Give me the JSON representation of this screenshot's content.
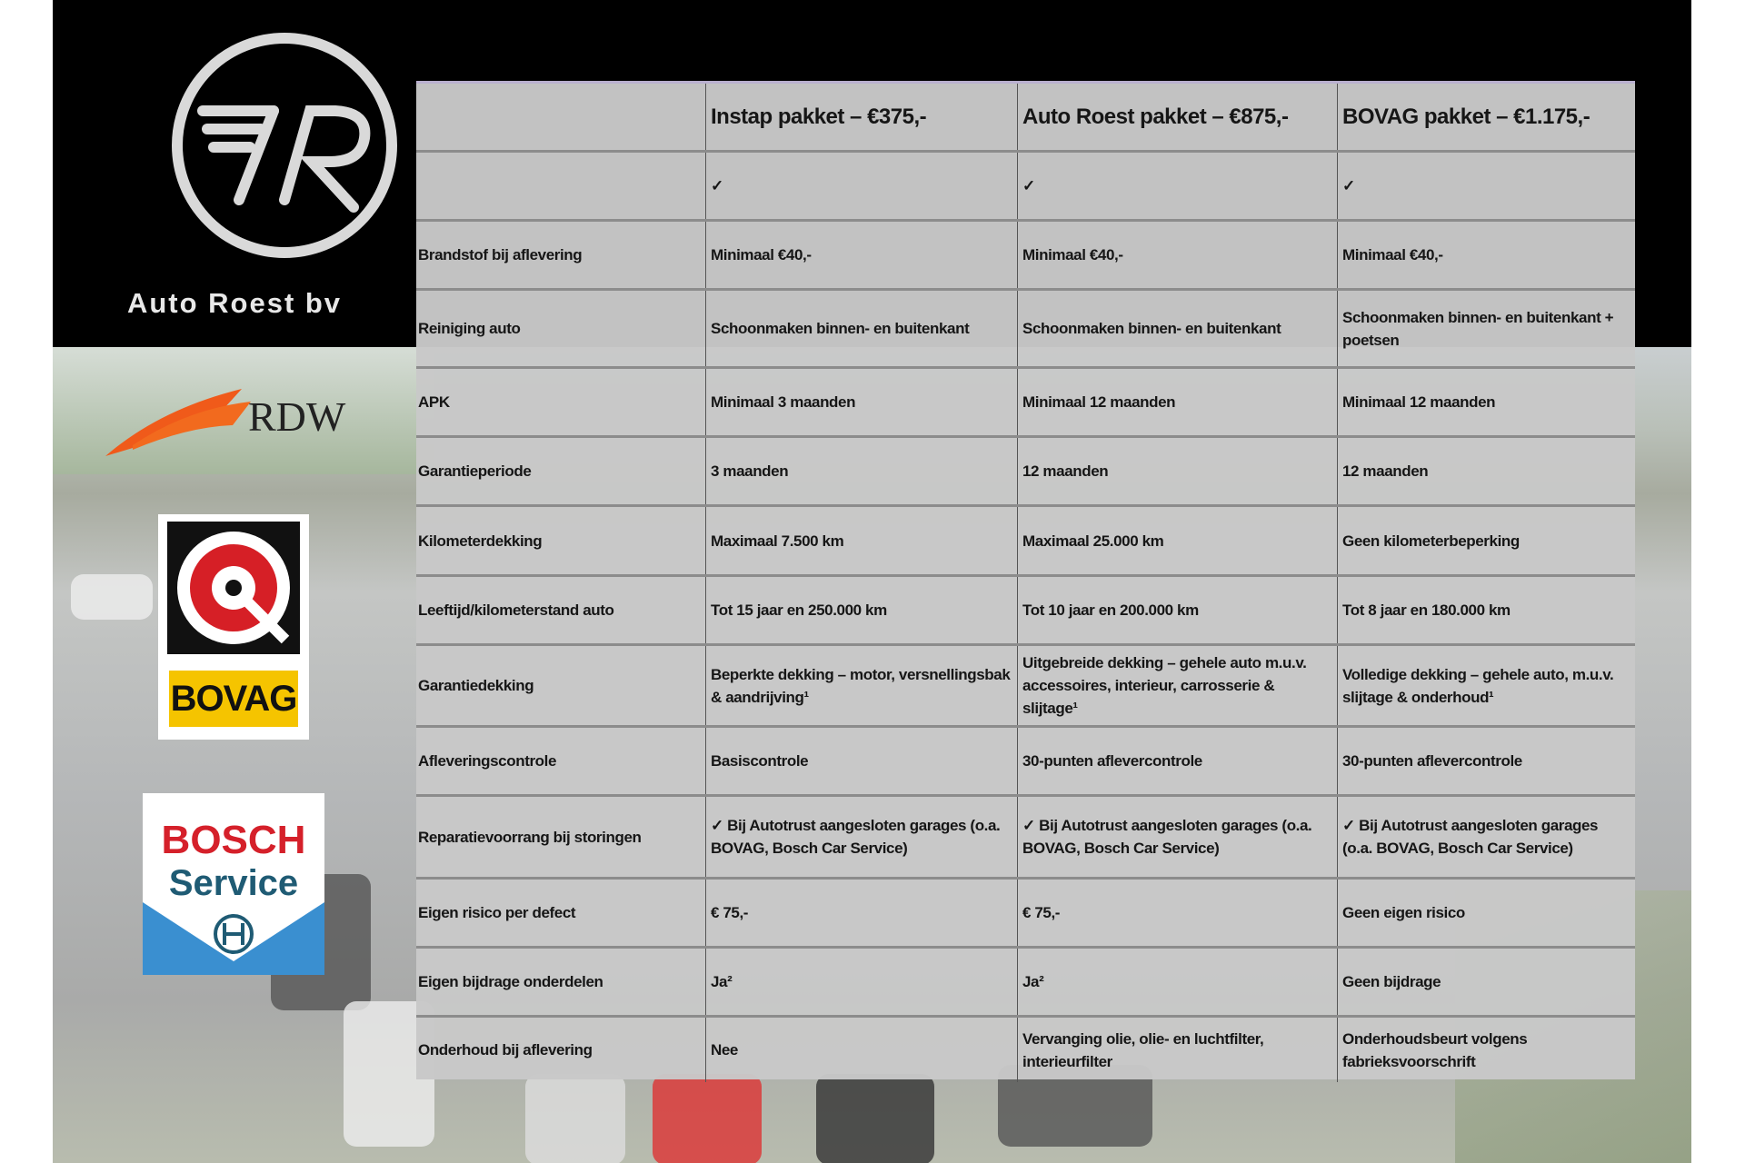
{
  "brand": {
    "name": "Auto Roest bv"
  },
  "logos": {
    "rdw": "RDW",
    "bovag": "BOVAG",
    "bosch_line1": "BOSCH",
    "bosch_line2": "Service"
  },
  "colors": {
    "table_bg": "#c8c8c8",
    "rdw_orange": "#f05a1a",
    "bovag_yellow": "#f5c400",
    "bovag_red": "#d61f26",
    "bosch_red": "#d5202a",
    "bosch_blue": "#3a8fd0"
  },
  "table": {
    "headers": [
      "",
      "Instap pakket – €375,-",
      "Auto Roest pakket – €875,-",
      "BOVAG pakket – €1.175,-"
    ],
    "rows": [
      {
        "label": "",
        "values": [
          "✓",
          "✓",
          "✓"
        ]
      },
      {
        "label": "Brandstof bij aflevering",
        "values": [
          "Minimaal €40,-",
          "Minimaal €40,-",
          "Minimaal €40,-"
        ]
      },
      {
        "label": "Reiniging auto",
        "values": [
          "Schoonmaken binnen- en buitenkant",
          "Schoonmaken binnen- en buitenkant",
          "Schoonmaken binnen- en buitenkant + poetsen"
        ]
      },
      {
        "label": "APK",
        "values": [
          "Minimaal 3 maanden",
          "Minimaal 12 maanden",
          "Minimaal 12 maanden"
        ]
      },
      {
        "label": "Garantieperiode",
        "values": [
          "3 maanden",
          "12 maanden",
          "12 maanden"
        ]
      },
      {
        "label": "Kilometerdekking",
        "values": [
          "Maximaal 7.500 km",
          "Maximaal 25.000 km",
          "Geen kilometerbeperking"
        ]
      },
      {
        "label": "Leeftijd/kilometerstand auto",
        "values": [
          "Tot 15 jaar en 250.000 km",
          "Tot 10 jaar en 200.000 km",
          "Tot 8 jaar en 180.000 km"
        ]
      },
      {
        "label": "Garantiedekking",
        "values": [
          "Beperkte dekking – motor, versnellingsbak & aandrijving¹",
          "Uitgebreide dekking – gehele auto m.u.v. accessoires, interieur, carrosserie & slijtage¹",
          "Volledige dekking – gehele auto, m.u.v. slijtage & onderhoud¹"
        ]
      },
      {
        "label": "Afleveringscontrole",
        "values": [
          "Basiscontrole",
          "30-punten aflevercontrole",
          "30-punten aflevercontrole"
        ]
      },
      {
        "label": "Reparatievoorrang bij storingen",
        "values": [
          "✓ Bij Autotrust aangesloten garages (o.a. BOVAG, Bosch Car Service)",
          "✓ Bij Autotrust aangesloten garages (o.a. BOVAG, Bosch Car Service)",
          "✓ Bij Autotrust aangesloten garages (o.a. BOVAG, Bosch Car Service)"
        ]
      },
      {
        "label": "Eigen risico per defect",
        "values": [
          "€ 75,-",
          "€ 75,-",
          "Geen eigen risico"
        ]
      },
      {
        "label": "Eigen bijdrage onderdelen",
        "values": [
          "Ja²",
          "Ja²",
          "Geen bijdrage"
        ]
      },
      {
        "label": "Onderhoud bij aflevering",
        "values": [
          "Nee",
          "Vervanging olie, olie- en luchtfilter, interieurfilter",
          "Onderhoudsbeurt volgens fabrieksvoorschrift"
        ]
      }
    ]
  }
}
